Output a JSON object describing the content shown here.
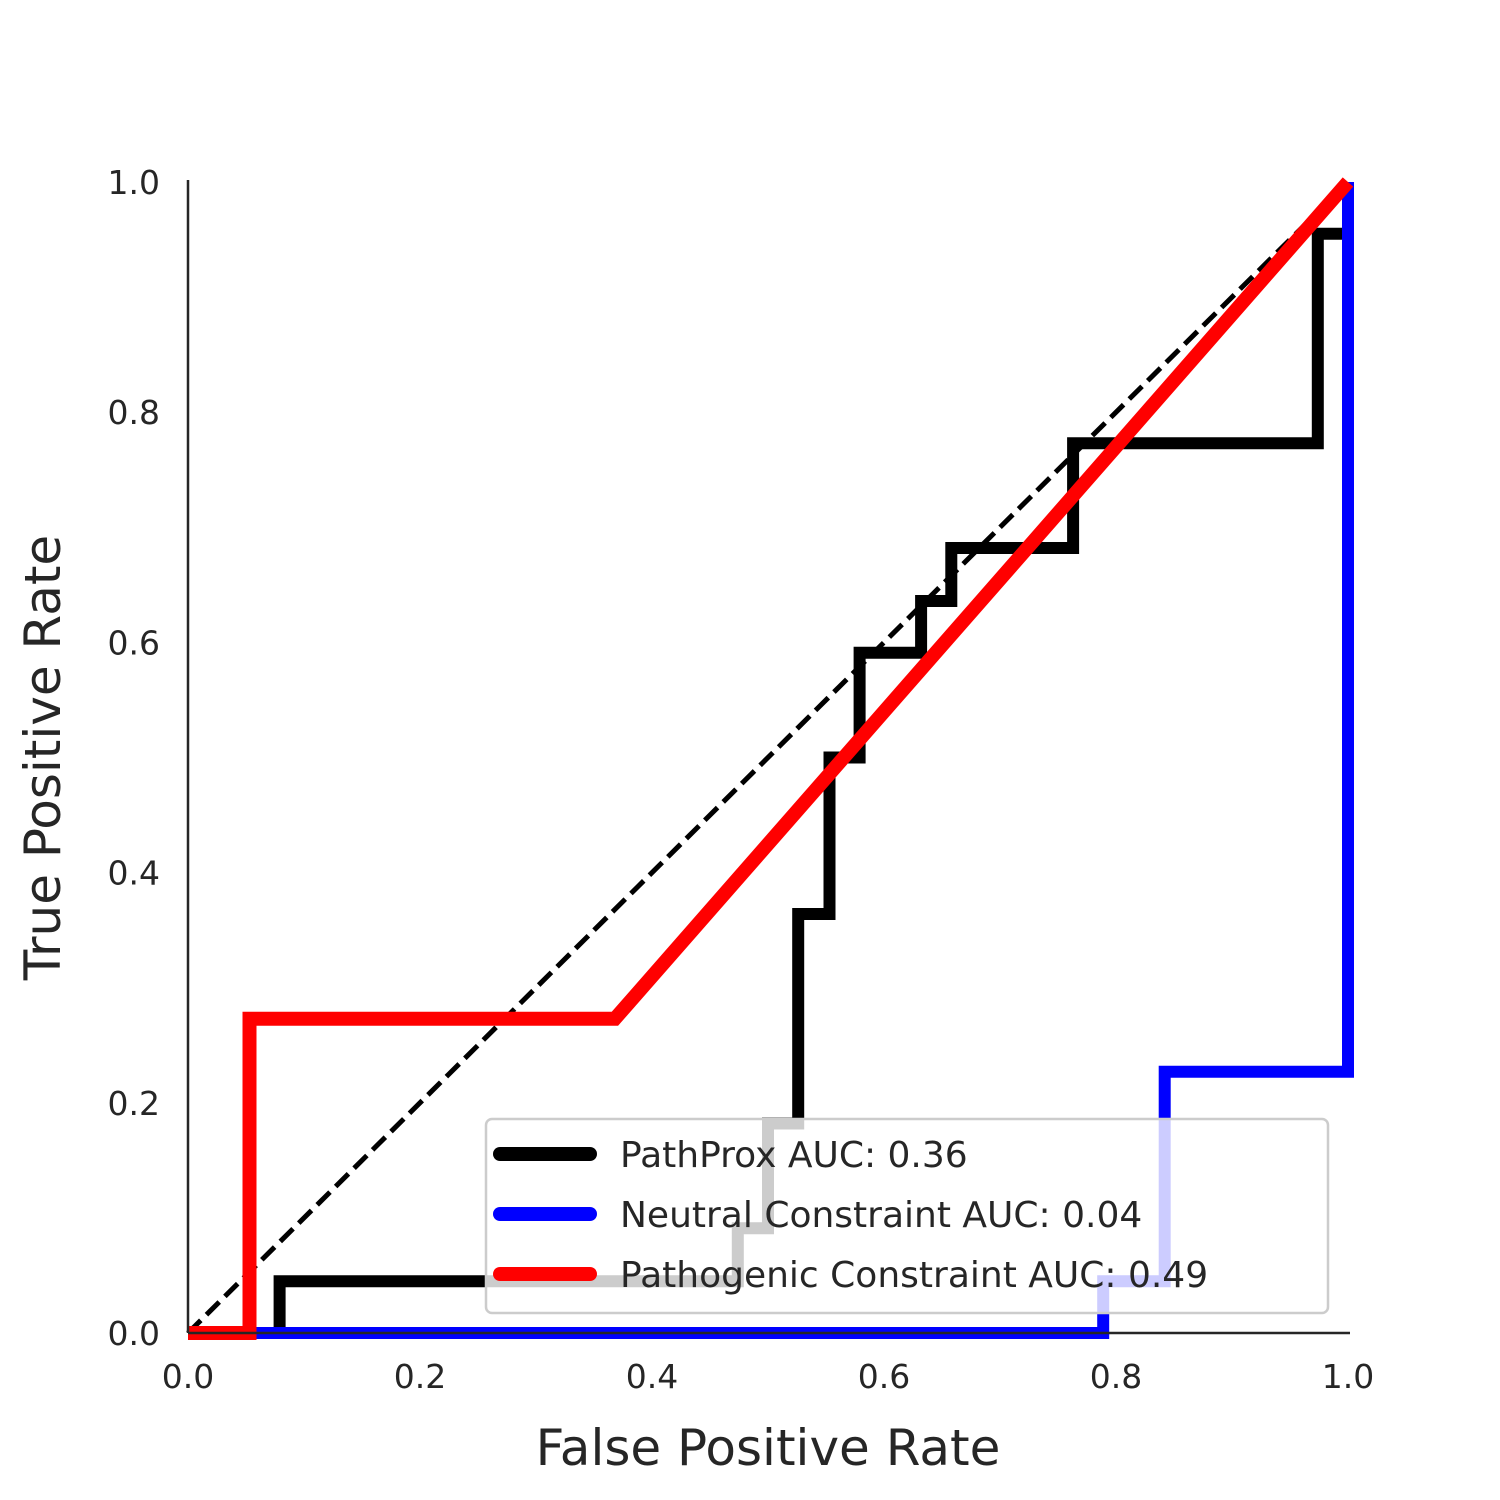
{
  "chart_data": {
    "type": "line",
    "title": "",
    "xlabel": "False Positive Rate",
    "ylabel": "True Positive Rate",
    "xlim": [
      0.0,
      1.0
    ],
    "ylim": [
      0.0,
      1.0
    ],
    "xticks": [
      "0.0",
      "0.2",
      "0.4",
      "0.6",
      "0.8",
      "1.0"
    ],
    "yticks": [
      "0.0",
      "0.2",
      "0.4",
      "0.6",
      "0.8",
      "1.0"
    ],
    "grid": false,
    "legend_position": "lower-right",
    "reference_line": {
      "style": "dashed",
      "color": "#000000",
      "x": [
        0,
        1
      ],
      "y": [
        0,
        1
      ]
    },
    "series": [
      {
        "name": "PathProx AUC:  0.36",
        "color": "#000000",
        "x": [
          0.0,
          0.079,
          0.079,
          0.474,
          0.474,
          0.5,
          0.5,
          0.526,
          0.526,
          0.553,
          0.553,
          0.579,
          0.579,
          0.632,
          0.632,
          0.658,
          0.658,
          0.763,
          0.763,
          0.974,
          0.974,
          1.0
        ],
        "y": [
          0.0,
          0.0,
          0.045,
          0.045,
          0.091,
          0.091,
          0.182,
          0.182,
          0.364,
          0.364,
          0.5,
          0.5,
          0.591,
          0.591,
          0.636,
          0.636,
          0.682,
          0.682,
          0.773,
          0.773,
          0.955,
          0.955
        ]
      },
      {
        "name": "Neutral Constraint AUC:  0.04",
        "color": "#0000ff",
        "x": [
          0.0,
          0.789,
          0.789,
          0.842,
          0.842,
          1.0,
          1.0
        ],
        "y": [
          0.0,
          0.0,
          0.045,
          0.045,
          0.227,
          0.227,
          1.0
        ]
      },
      {
        "name": "Pathogenic Constraint AUC:  0.49",
        "color": "#ff0000",
        "x": [
          0.0,
          0.053,
          0.053,
          0.368,
          1.0
        ],
        "y": [
          0.0,
          0.0,
          0.273,
          0.273,
          1.0
        ]
      }
    ]
  }
}
